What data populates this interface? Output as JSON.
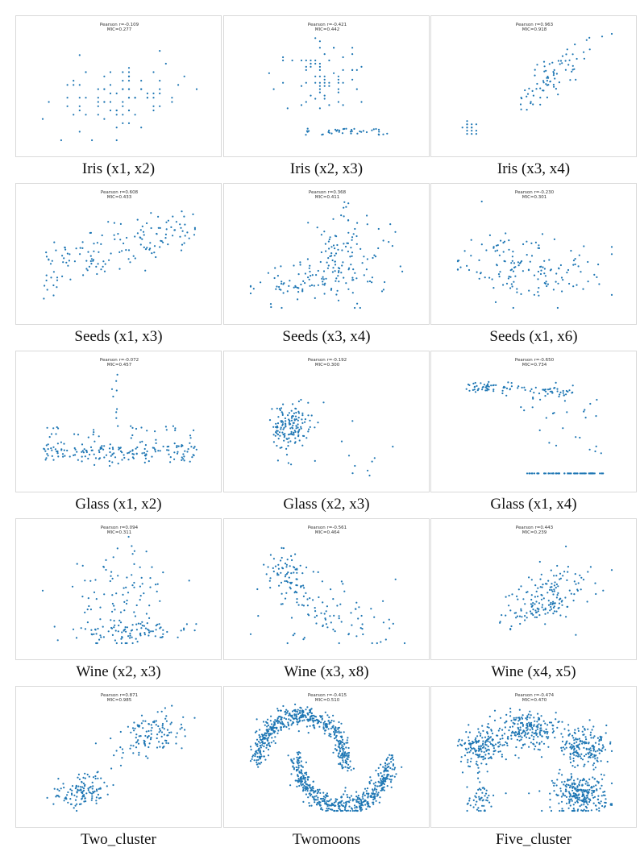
{
  "point_color": "#1f77b4",
  "chart_data": [
    {
      "type": "scatter",
      "title": "Iris (x1, x2)",
      "stat_lines": [
        "Pearson r=-0.109",
        "MIC=0.277"
      ],
      "pattern": "iris12"
    },
    {
      "type": "scatter",
      "title": "Iris (x2, x3)",
      "stat_lines": [
        "Pearson r=-0.421",
        "MIC=0.442"
      ],
      "pattern": "iris23"
    },
    {
      "type": "scatter",
      "title": "Iris (x3, x4)",
      "stat_lines": [
        "Pearson r=0.963",
        "MIC=0.918"
      ],
      "pattern": "iris34"
    },
    {
      "type": "scatter",
      "title": "Seeds (x1, x3)",
      "stat_lines": [
        "Pearson r=0.608",
        "MIC=0.433"
      ],
      "pattern": "seeds13"
    },
    {
      "type": "scatter",
      "title": "Seeds (x3, x4)",
      "stat_lines": [
        "Pearson r=0.368",
        "MIC=0.411"
      ],
      "pattern": "seeds34"
    },
    {
      "type": "scatter",
      "title": "Seeds (x1, x6)",
      "stat_lines": [
        "Pearson r=-0.230",
        "MIC=0.301"
      ],
      "pattern": "seeds16"
    },
    {
      "type": "scatter",
      "title": "Glass (x1, x2)",
      "stat_lines": [
        "Pearson r=-0.072",
        "MIC=0.457"
      ],
      "pattern": "glass12"
    },
    {
      "type": "scatter",
      "title": "Glass (x2, x3)",
      "stat_lines": [
        "Pearson r=-0.192",
        "MIC=0.300"
      ],
      "pattern": "glass23"
    },
    {
      "type": "scatter",
      "title": "Glass (x1, x4)",
      "stat_lines": [
        "Pearson r=-0.650",
        "MIC=0.734"
      ],
      "pattern": "glass14"
    },
    {
      "type": "scatter",
      "title": "Wine (x2, x3)",
      "stat_lines": [
        "Pearson r=0.094",
        "MIC=0.311"
      ],
      "pattern": "wine23"
    },
    {
      "type": "scatter",
      "title": "Wine (x3, x8)",
      "stat_lines": [
        "Pearson r=-0.561",
        "MIC=0.464"
      ],
      "pattern": "wine38"
    },
    {
      "type": "scatter",
      "title": "Wine (x4, x5)",
      "stat_lines": [
        "Pearson r=0.443",
        "MIC=0.239"
      ],
      "pattern": "wine45"
    },
    {
      "type": "scatter",
      "title": "Two_cluster",
      "stat_lines": [
        "Pearson r=0.871",
        "MIC=0.985"
      ],
      "pattern": "twocluster"
    },
    {
      "type": "scatter",
      "title": "Twomoons",
      "stat_lines": [
        "Pearson r=-0.415",
        "MIC=0.510"
      ],
      "pattern": "twomoons"
    },
    {
      "type": "scatter",
      "title": "Five_cluster",
      "stat_lines": [
        "Pearson r=-0.474",
        "MIC=0.470"
      ],
      "pattern": "fivecluster"
    }
  ]
}
